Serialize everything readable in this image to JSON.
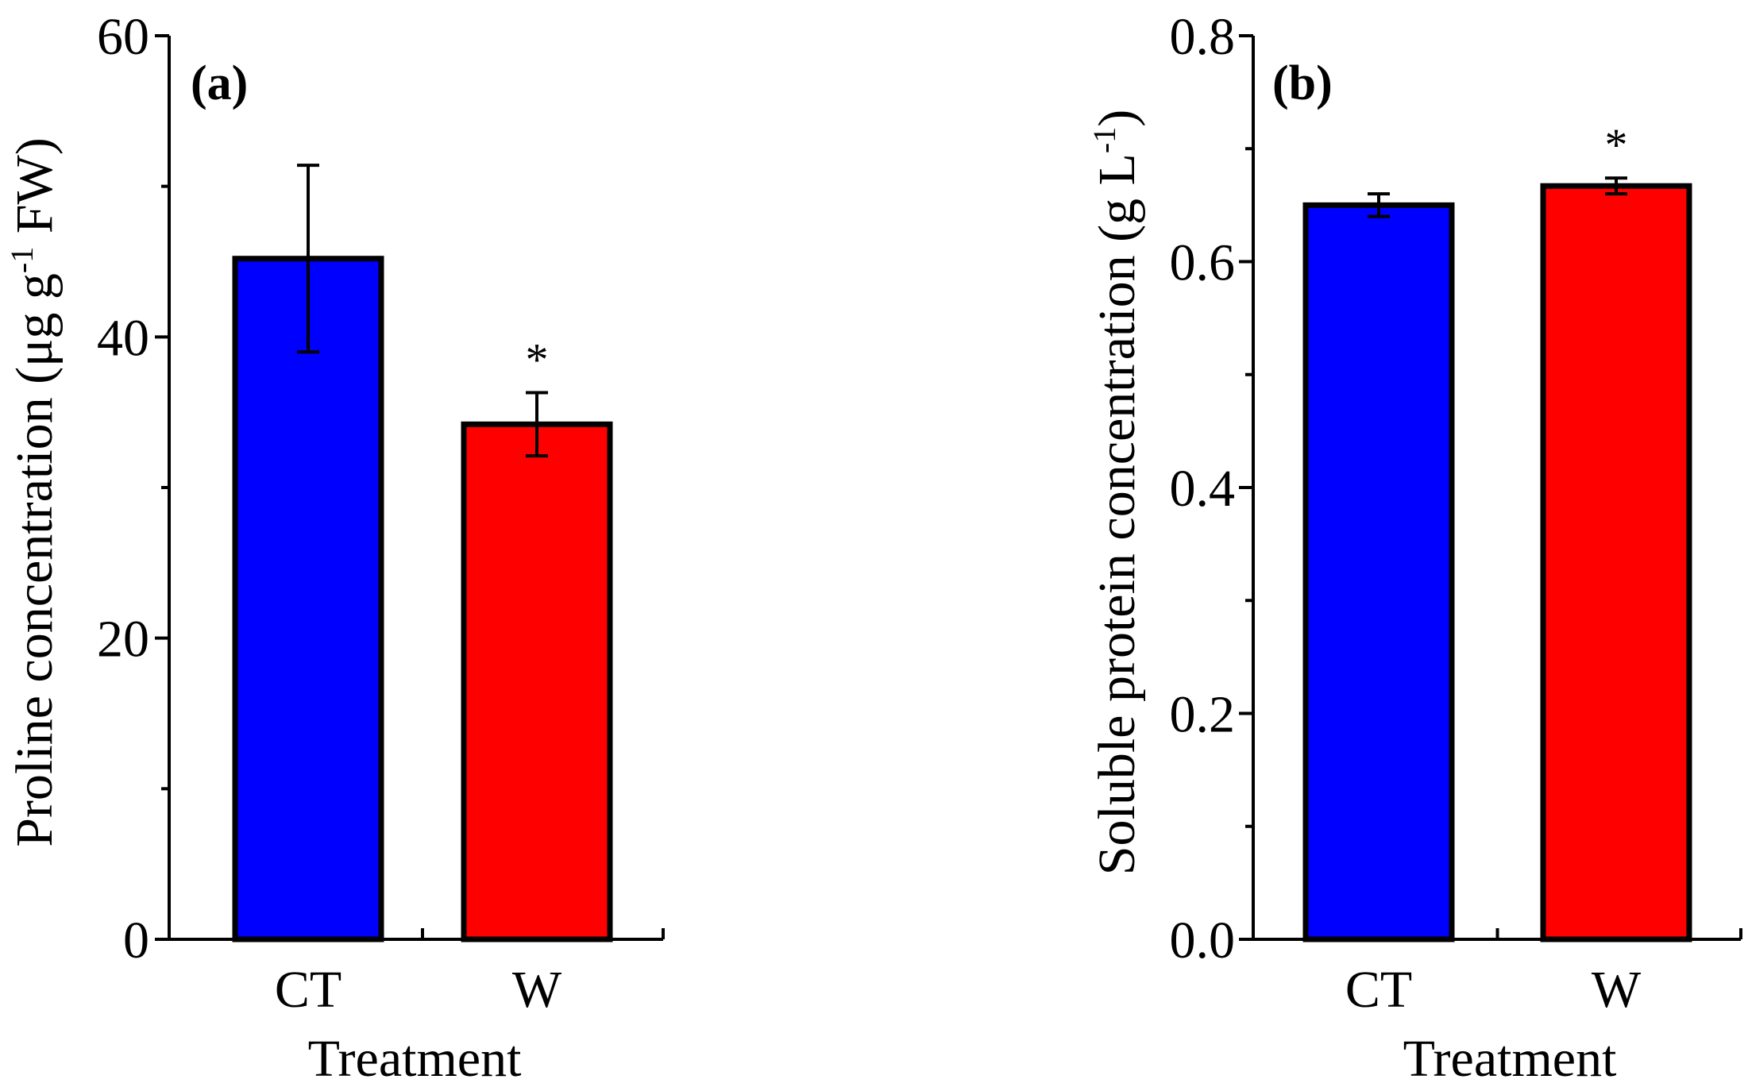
{
  "figure": {
    "background": "#ffffff"
  },
  "chart_data": [
    {
      "type": "bar",
      "panel": "(a)",
      "categories": [
        "CT",
        "W"
      ],
      "values": [
        45.2,
        34.2
      ],
      "errors": [
        6.2,
        2.1
      ],
      "significance": [
        "",
        "*"
      ],
      "colors": [
        "#0000ff",
        "#ff0000"
      ],
      "xlabel": "Treatment",
      "ylabel": {
        "main": "Proline concentration (μg g",
        "sup": "-1",
        "tail": " FW)"
      },
      "ylim": [
        0,
        60
      ],
      "yticks": [
        0,
        20,
        40,
        60
      ],
      "ytick_labels": [
        "0",
        "20",
        "40",
        "60"
      ],
      "grid": false,
      "legend": "none"
    },
    {
      "type": "bar",
      "panel": "(b)",
      "categories": [
        "CT",
        "W"
      ],
      "values": [
        0.65,
        0.667
      ],
      "errors": [
        0.01,
        0.007
      ],
      "significance": [
        "",
        "*"
      ],
      "colors": [
        "#0000ff",
        "#ff0000"
      ],
      "xlabel": "Treatment",
      "ylabel": {
        "main": "Soluble protein concentration (g L",
        "sup": "-1",
        "tail": ")"
      },
      "ylim": [
        0,
        0.8
      ],
      "yticks": [
        0,
        0.2,
        0.4,
        0.6,
        0.8
      ],
      "ytick_labels": [
        "0.0",
        "0.2",
        "0.4",
        "0.6",
        "0.8"
      ],
      "grid": false,
      "legend": "none"
    }
  ]
}
